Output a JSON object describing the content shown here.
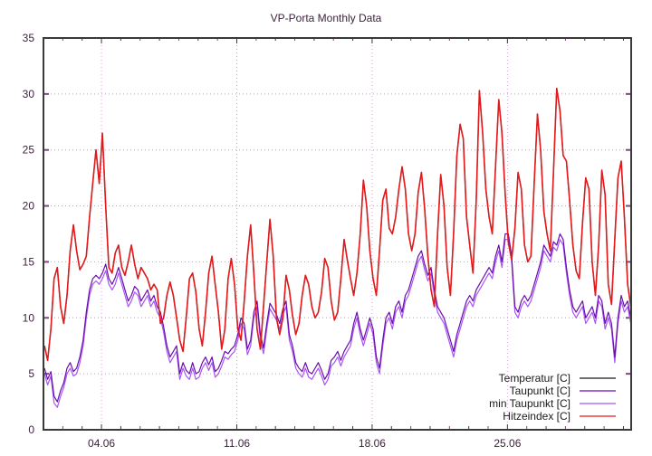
{
  "chart_data": {
    "type": "line",
    "title": "VP-Porta Monthly Data",
    "xlabel": "",
    "ylabel": "",
    "ylim": [
      0,
      35
    ],
    "yticks": [
      "0",
      "5",
      "10",
      "15",
      "20",
      "25",
      "30",
      "35"
    ],
    "xlim_days": [
      0,
      30.4
    ],
    "xticks": [
      {
        "label": "04.06",
        "day": 3
      },
      {
        "label": "11.06",
        "day": 10
      },
      {
        "label": "18.06",
        "day": 17
      },
      {
        "label": "25.06",
        "day": 24
      }
    ],
    "grid": true,
    "legend_position": "bottom-right",
    "sample_interval_hours": 4,
    "series": [
      {
        "name": "Temperatur [C]",
        "color": "#1a1a1a",
        "values": [
          7.5,
          6.2,
          9,
          13.5,
          14.5,
          11,
          9.5,
          12,
          16,
          18.3,
          16,
          14.3,
          14.8,
          15.5,
          19,
          22,
          25,
          22,
          26.5,
          20,
          14.5,
          14,
          15.8,
          16.5,
          14.5,
          13.8,
          15,
          16.5,
          14.8,
          13.5,
          14.5,
          14,
          13.5,
          12.5,
          13,
          12.5,
          9.5,
          10,
          12,
          13.2,
          12,
          10,
          8,
          7,
          10,
          13.5,
          14,
          12.3,
          9,
          7.5,
          10.5,
          14,
          15.5,
          13,
          10.5,
          7.2,
          9,
          13.5,
          15.3,
          13,
          9,
          8,
          11.5,
          15.5,
          18.3,
          14,
          9,
          7.2,
          11,
          15,
          18.8,
          15.5,
          10,
          8.5,
          10,
          13.8,
          12.5,
          10.2,
          8.5,
          9.5,
          12,
          13.8,
          13,
          11,
          10,
          10.5,
          12.3,
          15.3,
          14.5,
          11.5,
          9.8,
          10.5,
          13.5,
          17,
          15.2,
          13.5,
          12,
          14,
          17.5,
          22.3,
          20,
          16,
          13.5,
          12,
          16,
          20.5,
          21.5,
          18,
          17.5,
          19,
          21.5,
          23.5,
          21.5,
          17.5,
          16,
          17.5,
          21.2,
          23,
          19.8,
          15.5,
          12.5,
          11,
          17.5,
          22.8,
          20,
          14.5,
          12,
          17.5,
          24.5,
          27.3,
          26,
          19,
          16.5,
          14,
          20.5,
          30.3,
          26.5,
          21.5,
          19,
          17.5,
          23.5,
          29.5,
          26.5,
          21,
          16.7,
          15.2,
          18,
          23,
          21.5,
          16.5,
          15,
          15.5,
          22,
          28.2,
          25,
          19.5,
          17.5,
          16,
          23,
          30.5,
          28.5,
          24.5,
          24,
          20.5,
          16.5,
          14.2,
          13.5,
          18.5,
          22.5,
          21.5,
          15,
          12,
          16.5,
          23.2,
          21,
          13,
          11.2,
          17,
          22.5,
          24,
          19,
          13,
          11,
          18.5,
          24.5,
          21.5,
          14.5,
          13,
          17,
          18.5,
          18.5,
          16.5
        ],
        "legend_line": true
      },
      {
        "name": "Taupunkt [C]",
        "color": "#6a0dad",
        "values": [
          5.5,
          4.5,
          5.2,
          3,
          2.5,
          3.5,
          4.2,
          5.5,
          6,
          5.2,
          5.5,
          6.5,
          8,
          10.5,
          12.5,
          13.5,
          13.8,
          13.5,
          14,
          14.8,
          13.5,
          13,
          13.6,
          14.5,
          13.5,
          12.5,
          11.5,
          12,
          12.8,
          12.5,
          11.5,
          12,
          12.5,
          11.5,
          12,
          11,
          10.5,
          9.2,
          7.5,
          6.5,
          7,
          7.5,
          5,
          6,
          5.3,
          5,
          6,
          5,
          5.2,
          6,
          6.5,
          5.8,
          6.5,
          5.2,
          5.5,
          6.2,
          7,
          6.8,
          7.2,
          7.5,
          8.5,
          10,
          9.5,
          7.2,
          8,
          10.5,
          11.5,
          8.5,
          7.3,
          9.5,
          11.3,
          10.8,
          10.3,
          9.5,
          10.8,
          11.5,
          8.5,
          7.5,
          6,
          5.5,
          5.2,
          6,
          5.2,
          5,
          5.5,
          6,
          5.3,
          4.5,
          5,
          6.2,
          6.5,
          7,
          6.2,
          7,
          7.5,
          8,
          9.5,
          10.5,
          9,
          8,
          9,
          10,
          9,
          6.5,
          5.5,
          8,
          10,
          10.5,
          9.5,
          11,
          11.5,
          10.5,
          12,
          12.5,
          13.5,
          14.5,
          15.5,
          16,
          14.8,
          13.8,
          14.5,
          12.5,
          11,
          10.5,
          10,
          9,
          8,
          7,
          8.5,
          9.5,
          10.5,
          11.5,
          12,
          11.5,
          12.5,
          13,
          13.5,
          14,
          14.5,
          14,
          15.5,
          16.5,
          15,
          17.5,
          17.5,
          15.5,
          11,
          10.5,
          11.5,
          12,
          11.5,
          12,
          13,
          14,
          15,
          16.5,
          16,
          15.5,
          16.8,
          16.5,
          17.5,
          17,
          14.5,
          12.5,
          11,
          10.5,
          11,
          11.5,
          10,
          10.5,
          11,
          10,
          12,
          11.5,
          9.5,
          10.5,
          9.5,
          6.5,
          10,
          12,
          11,
          11.5,
          10,
          10.5,
          12.5,
          12,
          13,
          13.5,
          14.5,
          14.8,
          15,
          14.5
        ],
        "legend_line": true
      },
      {
        "name": "min Taupunkt [C]",
        "color": "#a855f7",
        "values": [
          5,
          4,
          4.8,
          2.4,
          2,
          3,
          3.8,
          5,
          5.5,
          4.8,
          5,
          6,
          7.5,
          10,
          12,
          13,
          13.3,
          13,
          13.5,
          14.2,
          13,
          12.5,
          13,
          14,
          13,
          12,
          11,
          11.5,
          12.3,
          12,
          11,
          11.5,
          12,
          11,
          11.5,
          10.5,
          10,
          8.7,
          7,
          6,
          6.5,
          7,
          4.5,
          5.5,
          4.8,
          4.5,
          5.5,
          4.5,
          4.7,
          5.5,
          6,
          5.3,
          6,
          4.7,
          5,
          5.7,
          6.5,
          6.3,
          6.7,
          7,
          8,
          9.5,
          9,
          6.7,
          7.5,
          10,
          11,
          8,
          6.8,
          9,
          10.8,
          10.3,
          9.8,
          9,
          10.3,
          11,
          8,
          7,
          5.5,
          5,
          4.7,
          5.5,
          4.7,
          4.5,
          5,
          5.5,
          4.8,
          4,
          4.5,
          5.7,
          6,
          6.5,
          5.7,
          6.5,
          7,
          7.5,
          9,
          10,
          8.5,
          7.5,
          8.5,
          9.5,
          8.5,
          6,
          5,
          7.5,
          9.5,
          10,
          9,
          10.5,
          11,
          10,
          11.5,
          12,
          13,
          14,
          15,
          15.5,
          14.3,
          13.3,
          14,
          12,
          10.5,
          10,
          9.5,
          8.5,
          7.5,
          6.5,
          8,
          9,
          10,
          11,
          11.5,
          11,
          12,
          12.5,
          13,
          13.5,
          14,
          13.5,
          15,
          16,
          14.5,
          17,
          17,
          15,
          10.5,
          10,
          11,
          11.5,
          11,
          11.5,
          12.5,
          13.5,
          14.5,
          16,
          15.5,
          15,
          16.3,
          16,
          17,
          16.5,
          14,
          12,
          10.5,
          10,
          10.5,
          11,
          9.5,
          10,
          10.5,
          9.5,
          11.5,
          11,
          9,
          10,
          9,
          6,
          9.5,
          11.5,
          10.5,
          11,
          9.5,
          10,
          12,
          11.5,
          12.5,
          13,
          14,
          14.3,
          14.5,
          14
        ],
        "legend_line": true
      },
      {
        "name": "Hitzeindex [C]",
        "color": "#e31a1c",
        "values": "same_as:Temperatur [C]",
        "legend_line": true
      }
    ]
  }
}
